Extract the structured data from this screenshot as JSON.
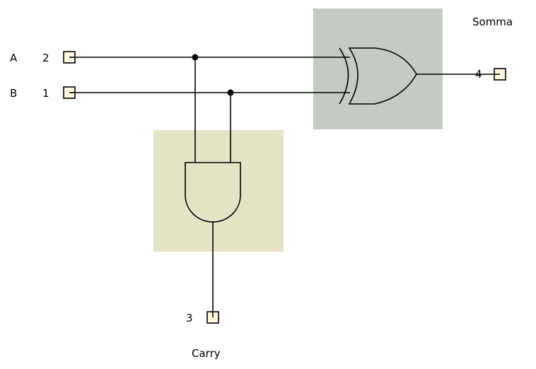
{
  "circuit": {
    "inputs": [
      {
        "name": "A",
        "pin": "2"
      },
      {
        "name": "B",
        "pin": "1"
      }
    ],
    "outputs": [
      {
        "name": "Somma",
        "pin": "4"
      },
      {
        "name": "Carry",
        "pin": "3"
      }
    ]
  },
  "colors": {
    "wire": "#000000",
    "xor_region": "#c5cac5",
    "and_region": "#e4e3c6",
    "pin_fill": "#fff8e0"
  }
}
